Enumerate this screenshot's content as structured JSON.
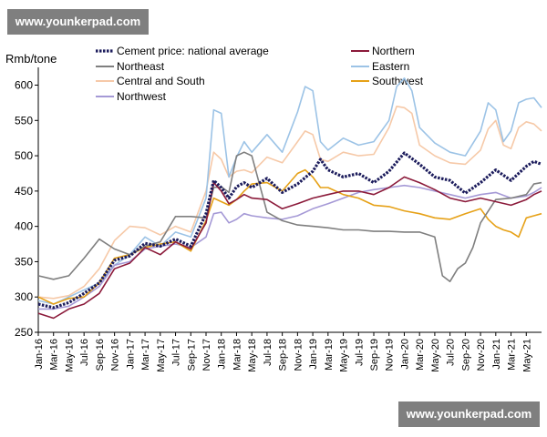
{
  "watermark_top": "www.younkerpad.com",
  "watermark_bottom": "www.younkerpad.com",
  "chart_data": {
    "type": "line",
    "ylabel": "Rmb/tone",
    "ylim": [
      250,
      620
    ],
    "yticks": [
      250,
      300,
      350,
      400,
      450,
      500,
      550,
      600
    ],
    "x_range": [
      0,
      66
    ],
    "xtick_labels": [
      "Jan-16",
      "Mar-16",
      "May-16",
      "Jul-16",
      "Sep-16",
      "Nov-16",
      "Jan-17",
      "Mar-17",
      "May-17",
      "Jul-17",
      "Sep-17",
      "Nov-17",
      "Jan-18",
      "Mar-18",
      "May-18",
      "Jul-18",
      "Sep-18",
      "Nov-18",
      "Jan-19",
      "Mar-19",
      "May-19",
      "Jul-19",
      "Sep-19",
      "Nov-19",
      "Jan-20",
      "Mar-20",
      "May-20",
      "Jul-20",
      "Sep-20",
      "Nov-20",
      "Jan-21",
      "Mar-21",
      "May-21"
    ],
    "xtick_positions": [
      0,
      2,
      4,
      6,
      8,
      10,
      12,
      14,
      16,
      18,
      20,
      22,
      24,
      26,
      28,
      30,
      32,
      34,
      36,
      38,
      40,
      42,
      44,
      46,
      48,
      50,
      52,
      54,
      56,
      58,
      60,
      62,
      64
    ],
    "grid": false,
    "legend_position": "top",
    "series": [
      {
        "name": "Cement price: national average",
        "color": "#1c1c5c",
        "style": "dotted-thick",
        "values": [
          [
            0,
            290
          ],
          [
            2,
            285
          ],
          [
            4,
            292
          ],
          [
            6,
            305
          ],
          [
            8,
            320
          ],
          [
            10,
            352
          ],
          [
            12,
            358
          ],
          [
            14,
            376
          ],
          [
            16,
            372
          ],
          [
            18,
            382
          ],
          [
            20,
            372
          ],
          [
            22,
            418
          ],
          [
            23,
            465
          ],
          [
            24,
            455
          ],
          [
            25,
            440
          ],
          [
            26,
            456
          ],
          [
            27,
            462
          ],
          [
            28,
            455
          ],
          [
            30,
            468
          ],
          [
            32,
            448
          ],
          [
            34,
            460
          ],
          [
            36,
            478
          ],
          [
            37,
            495
          ],
          [
            38,
            480
          ],
          [
            40,
            470
          ],
          [
            42,
            475
          ],
          [
            44,
            462
          ],
          [
            46,
            478
          ],
          [
            48,
            504
          ],
          [
            50,
            488
          ],
          [
            52,
            470
          ],
          [
            54,
            465
          ],
          [
            56,
            447
          ],
          [
            58,
            462
          ],
          [
            60,
            480
          ],
          [
            62,
            465
          ],
          [
            64,
            485
          ],
          [
            65,
            492
          ],
          [
            66,
            488
          ]
        ]
      },
      {
        "name": "Northern",
        "color": "#8b1a3a",
        "style": "solid",
        "values": [
          [
            0,
            277
          ],
          [
            2,
            270
          ],
          [
            4,
            283
          ],
          [
            6,
            290
          ],
          [
            8,
            305
          ],
          [
            10,
            340
          ],
          [
            12,
            348
          ],
          [
            14,
            370
          ],
          [
            16,
            360
          ],
          [
            18,
            378
          ],
          [
            20,
            368
          ],
          [
            22,
            405
          ],
          [
            23,
            462
          ],
          [
            24,
            450
          ],
          [
            25,
            432
          ],
          [
            26,
            438
          ],
          [
            27,
            445
          ],
          [
            28,
            440
          ],
          [
            30,
            438
          ],
          [
            32,
            425
          ],
          [
            34,
            432
          ],
          [
            36,
            440
          ],
          [
            38,
            445
          ],
          [
            40,
            450
          ],
          [
            42,
            450
          ],
          [
            44,
            445
          ],
          [
            46,
            455
          ],
          [
            48,
            470
          ],
          [
            50,
            462
          ],
          [
            52,
            452
          ],
          [
            54,
            440
          ],
          [
            56,
            435
          ],
          [
            58,
            440
          ],
          [
            60,
            435
          ],
          [
            62,
            430
          ],
          [
            64,
            438
          ],
          [
            65,
            445
          ],
          [
            66,
            450
          ]
        ]
      },
      {
        "name": "Northeast",
        "color": "#7f7f7f",
        "style": "solid",
        "values": [
          [
            0,
            330
          ],
          [
            2,
            325
          ],
          [
            4,
            330
          ],
          [
            6,
            355
          ],
          [
            8,
            382
          ],
          [
            10,
            368
          ],
          [
            12,
            360
          ],
          [
            14,
            372
          ],
          [
            16,
            378
          ],
          [
            18,
            414
          ],
          [
            20,
            414
          ],
          [
            22,
            412
          ],
          [
            23,
            455
          ],
          [
            24,
            456
          ],
          [
            25,
            448
          ],
          [
            26,
            500
          ],
          [
            27,
            505
          ],
          [
            28,
            500
          ],
          [
            30,
            420
          ],
          [
            32,
            408
          ],
          [
            34,
            402
          ],
          [
            36,
            400
          ],
          [
            38,
            398
          ],
          [
            40,
            395
          ],
          [
            42,
            395
          ],
          [
            44,
            393
          ],
          [
            46,
            393
          ],
          [
            48,
            392
          ],
          [
            50,
            392
          ],
          [
            52,
            385
          ],
          [
            53,
            330
          ],
          [
            54,
            322
          ],
          [
            55,
            340
          ],
          [
            56,
            348
          ],
          [
            57,
            370
          ],
          [
            58,
            405
          ],
          [
            60,
            438
          ],
          [
            62,
            440
          ],
          [
            64,
            445
          ],
          [
            65,
            460
          ],
          [
            66,
            462
          ]
        ]
      },
      {
        "name": "Eastern",
        "color": "#9cc3e6",
        "style": "solid",
        "values": [
          [
            0,
            295
          ],
          [
            2,
            290
          ],
          [
            4,
            300
          ],
          [
            6,
            310
          ],
          [
            8,
            320
          ],
          [
            10,
            345
          ],
          [
            12,
            360
          ],
          [
            14,
            385
          ],
          [
            16,
            372
          ],
          [
            18,
            392
          ],
          [
            20,
            385
          ],
          [
            22,
            440
          ],
          [
            23,
            565
          ],
          [
            24,
            560
          ],
          [
            25,
            470
          ],
          [
            26,
            498
          ],
          [
            27,
            520
          ],
          [
            28,
            505
          ],
          [
            30,
            530
          ],
          [
            32,
            505
          ],
          [
            34,
            562
          ],
          [
            35,
            598
          ],
          [
            36,
            592
          ],
          [
            37,
            520
          ],
          [
            38,
            508
          ],
          [
            40,
            525
          ],
          [
            42,
            515
          ],
          [
            44,
            520
          ],
          [
            46,
            550
          ],
          [
            47,
            598
          ],
          [
            48,
            610
          ],
          [
            49,
            592
          ],
          [
            50,
            540
          ],
          [
            52,
            518
          ],
          [
            54,
            505
          ],
          [
            56,
            500
          ],
          [
            58,
            535
          ],
          [
            59,
            575
          ],
          [
            60,
            565
          ],
          [
            61,
            520
          ],
          [
            62,
            535
          ],
          [
            63,
            575
          ],
          [
            64,
            580
          ],
          [
            65,
            582
          ],
          [
            66,
            568
          ]
        ]
      },
      {
        "name": "Central and South",
        "color": "#f6c9a8",
        "style": "solid",
        "values": [
          [
            0,
            300
          ],
          [
            2,
            298
          ],
          [
            4,
            302
          ],
          [
            6,
            315
          ],
          [
            8,
            340
          ],
          [
            10,
            380
          ],
          [
            12,
            400
          ],
          [
            14,
            398
          ],
          [
            16,
            388
          ],
          [
            18,
            400
          ],
          [
            20,
            392
          ],
          [
            22,
            450
          ],
          [
            23,
            505
          ],
          [
            24,
            495
          ],
          [
            25,
            470
          ],
          [
            26,
            478
          ],
          [
            27,
            480
          ],
          [
            28,
            476
          ],
          [
            30,
            498
          ],
          [
            32,
            490
          ],
          [
            34,
            520
          ],
          [
            35,
            535
          ],
          [
            36,
            530
          ],
          [
            37,
            495
          ],
          [
            38,
            492
          ],
          [
            40,
            505
          ],
          [
            42,
            500
          ],
          [
            44,
            502
          ],
          [
            46,
            540
          ],
          [
            47,
            570
          ],
          [
            48,
            568
          ],
          [
            49,
            560
          ],
          [
            50,
            515
          ],
          [
            52,
            500
          ],
          [
            54,
            490
          ],
          [
            56,
            488
          ],
          [
            58,
            508
          ],
          [
            59,
            538
          ],
          [
            60,
            550
          ],
          [
            61,
            515
          ],
          [
            62,
            510
          ],
          [
            63,
            540
          ],
          [
            64,
            548
          ],
          [
            65,
            545
          ],
          [
            66,
            535
          ]
        ]
      },
      {
        "name": "Southwest",
        "color": "#e6a117",
        "style": "solid",
        "values": [
          [
            0,
            300
          ],
          [
            2,
            290
          ],
          [
            4,
            298
          ],
          [
            6,
            300
          ],
          [
            8,
            320
          ],
          [
            10,
            355
          ],
          [
            12,
            360
          ],
          [
            14,
            370
          ],
          [
            16,
            375
          ],
          [
            18,
            378
          ],
          [
            20,
            365
          ],
          [
            22,
            408
          ],
          [
            23,
            440
          ],
          [
            24,
            435
          ],
          [
            25,
            430
          ],
          [
            26,
            438
          ],
          [
            27,
            450
          ],
          [
            28,
            460
          ],
          [
            30,
            462
          ],
          [
            32,
            450
          ],
          [
            34,
            475
          ],
          [
            35,
            480
          ],
          [
            36,
            470
          ],
          [
            37,
            455
          ],
          [
            38,
            455
          ],
          [
            40,
            445
          ],
          [
            42,
            440
          ],
          [
            44,
            430
          ],
          [
            46,
            428
          ],
          [
            48,
            422
          ],
          [
            50,
            418
          ],
          [
            52,
            412
          ],
          [
            54,
            410
          ],
          [
            56,
            418
          ],
          [
            58,
            425
          ],
          [
            59,
            410
          ],
          [
            60,
            400
          ],
          [
            61,
            395
          ],
          [
            62,
            392
          ],
          [
            63,
            385
          ],
          [
            64,
            412
          ],
          [
            65,
            415
          ],
          [
            66,
            418
          ]
        ]
      },
      {
        "name": "Northwest",
        "color": "#a599d6",
        "style": "solid",
        "values": [
          [
            0,
            283
          ],
          [
            2,
            283
          ],
          [
            4,
            287
          ],
          [
            6,
            300
          ],
          [
            8,
            315
          ],
          [
            10,
            345
          ],
          [
            12,
            350
          ],
          [
            14,
            368
          ],
          [
            16,
            372
          ],
          [
            18,
            375
          ],
          [
            20,
            370
          ],
          [
            22,
            385
          ],
          [
            23,
            418
          ],
          [
            24,
            420
          ],
          [
            25,
            405
          ],
          [
            26,
            410
          ],
          [
            27,
            418
          ],
          [
            28,
            415
          ],
          [
            30,
            412
          ],
          [
            32,
            410
          ],
          [
            34,
            415
          ],
          [
            36,
            425
          ],
          [
            38,
            432
          ],
          [
            40,
            440
          ],
          [
            42,
            448
          ],
          [
            44,
            452
          ],
          [
            46,
            455
          ],
          [
            48,
            458
          ],
          [
            50,
            455
          ],
          [
            52,
            450
          ],
          [
            54,
            445
          ],
          [
            56,
            440
          ],
          [
            58,
            445
          ],
          [
            60,
            448
          ],
          [
            62,
            440
          ],
          [
            64,
            443
          ],
          [
            65,
            448
          ],
          [
            66,
            455
          ]
        ]
      }
    ]
  }
}
